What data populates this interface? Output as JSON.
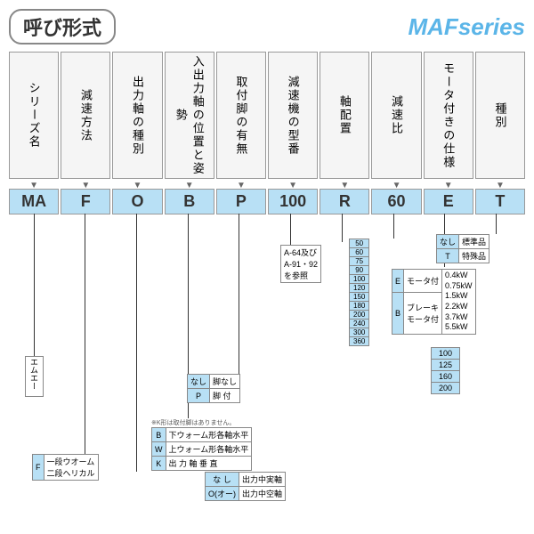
{
  "header": {
    "title": "呼び形式",
    "series": "MAFseries"
  },
  "columns": [
    "シリーズ名",
    "減速方法",
    "出力軸の種別",
    "入出力軸の位置と姿勢",
    "取付脚の有無",
    "減速機の型番",
    "軸配置",
    "減速比",
    "モータ付きの仕様",
    "種別"
  ],
  "codes": [
    "MA",
    "F",
    "O",
    "B",
    "P",
    "100",
    "R",
    "60",
    "E",
    "T"
  ],
  "details": {
    "ma": {
      "label": "エムエー"
    },
    "f": {
      "rows": [
        [
          "F",
          "一段ウオーム\n二段ヘリカル"
        ]
      ]
    },
    "p": {
      "rows": [
        [
          "なし",
          "脚なし"
        ],
        [
          "P",
          "脚 付"
        ]
      ]
    },
    "b": {
      "rows": [
        [
          "B",
          "下ウォーム形各軸水平"
        ],
        [
          "W",
          "上ウォーム形各軸水平"
        ],
        [
          "K",
          "出 力 軸 垂 直"
        ]
      ],
      "note": "※K形は取付脚はありません。"
    },
    "o": {
      "rows": [
        [
          "な し",
          "出力中実軸"
        ],
        [
          "O(オー)",
          "出力中空軸"
        ]
      ]
    },
    "model": {
      "text": "A-64及び\nA-91・92\nを参照"
    },
    "ratio": {
      "values": [
        "50",
        "60",
        "75",
        "90",
        "100",
        "120",
        "150",
        "180",
        "200",
        "240",
        "300",
        "360"
      ]
    },
    "e": {
      "rows": [
        [
          "E",
          "モータ付"
        ],
        [
          "B",
          "ブレーキ\nモータ付"
        ]
      ],
      "kw": [
        "0.4kW",
        "0.75kW",
        "1.5kW",
        "2.2kW",
        "3.7kW",
        "5.5kW"
      ]
    },
    "size": {
      "values": [
        "100",
        "125",
        "160",
        "200"
      ]
    },
    "t": {
      "rows": [
        [
          "なし",
          "標準品"
        ],
        [
          "T",
          "特殊品"
        ]
      ]
    }
  }
}
